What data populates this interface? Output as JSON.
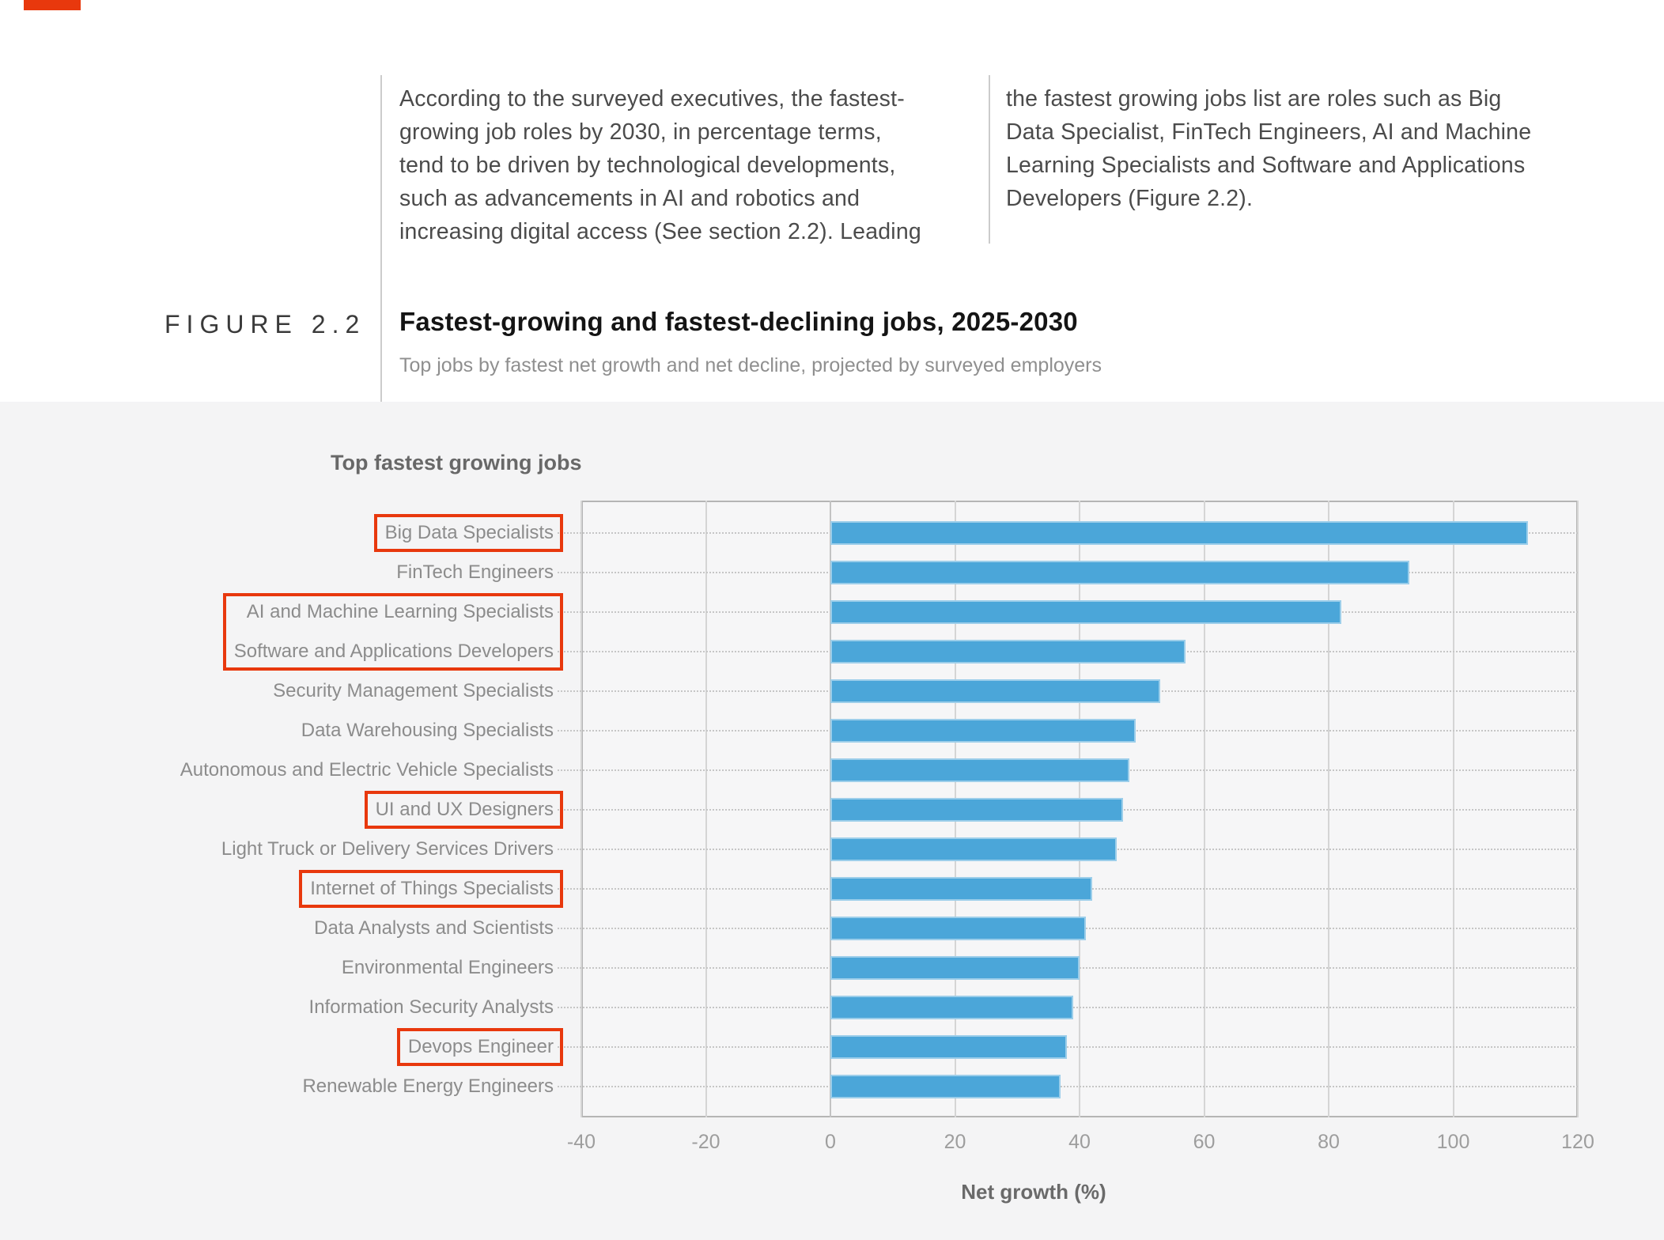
{
  "page": {
    "intro_col_left": [
      "According to the surveyed executives, the fastest-",
      "growing job roles by 2030, in percentage terms,",
      "tend to be driven by technological developments,",
      "such as advancements in AI and robotics and",
      "increasing digital access (See section 2.2). Leading"
    ],
    "intro_col_right": [
      "the fastest growing jobs list are roles such as Big",
      "Data Specialist, FinTech Engineers, AI and Machine",
      "Learning Specialists and Software and Applications",
      "Developers (Figure 2.2)."
    ],
    "figure_label": "FIGURE 2.2",
    "figure_title": "Fastest-growing and fastest-declining jobs, 2025-2030",
    "figure_subtitle": "Top jobs by fastest net growth and net decline, projected by surveyed employers",
    "accent_color": "#e8380d"
  },
  "chart_data": {
    "type": "bar",
    "orientation": "horizontal",
    "title": "Top fastest growing jobs",
    "xlabel": "Net growth (%)",
    "xlim": [
      -40,
      120
    ],
    "ticks": [
      -40,
      -20,
      0,
      20,
      40,
      60,
      80,
      100,
      120
    ],
    "grid": true,
    "legend": "none",
    "bar_color": "#4ba6d9",
    "categories": [
      "Big Data Specialists",
      "FinTech Engineers",
      "AI and Machine Learning Specialists",
      "Software and Applications Developers",
      "Security Management Specialists",
      "Data Warehousing Specialists",
      "Autonomous and Electric Vehicle Specialists",
      "UI and UX Designers",
      "Light Truck or Delivery Services Drivers",
      "Internet of Things Specialists",
      "Data Analysts and Scientists",
      "Environmental Engineers",
      "Information Security Analysts",
      "Devops Engineer",
      "Renewable Energy Engineers"
    ],
    "values": [
      112,
      93,
      82,
      57,
      53,
      49,
      48,
      47,
      46,
      42,
      41,
      40,
      39,
      38,
      37
    ],
    "highlight_groups": [
      [
        0
      ],
      [
        2,
        3
      ],
      [
        7
      ],
      [
        9
      ],
      [
        13
      ]
    ],
    "highlight_color": "#e8380d"
  }
}
